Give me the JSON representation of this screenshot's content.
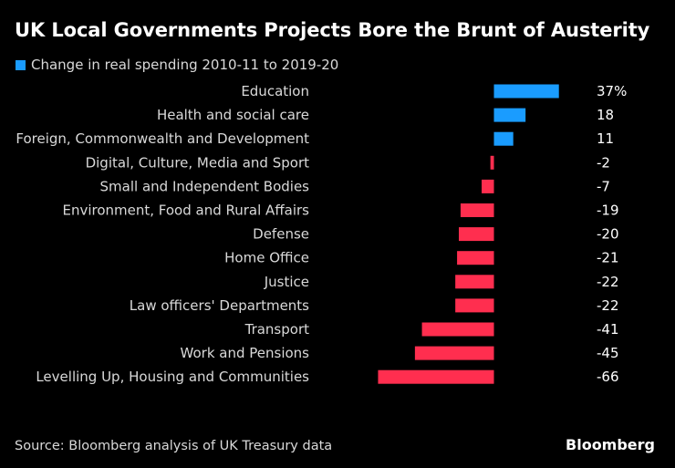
{
  "chart_data": {
    "type": "bar",
    "title": "UK Local Governments Projects Bore the Brunt of Austerity",
    "legend": "Change in real spending 2010-11 to 2019-20",
    "categories": [
      "Education",
      "Health and social care",
      "Foreign, Commonwealth and Development",
      "Digital, Culture, Media and Sport",
      "Small and Independent Bodies",
      "Environment, Food and Rural Affairs",
      "Defense",
      "Home Office",
      "Justice",
      "Law officers' Departments",
      "Transport",
      "Work and Pensions",
      "Levelling Up, Housing and Communities"
    ],
    "values": [
      37,
      18,
      11,
      -2,
      -7,
      -19,
      -20,
      -21,
      -22,
      -22,
      -41,
      -45,
      -66
    ],
    "value_labels": [
      "37%",
      "18",
      "11",
      "-2",
      "-7",
      "-19",
      "-20",
      "-21",
      "-22",
      "-22",
      "-41",
      "-45",
      "-66"
    ],
    "orientation": "horizontal",
    "colors": {
      "positive": "#1a9cff",
      "negative": "#ff2e4f"
    },
    "legend_position": "top-left",
    "grid": false
  },
  "footer": {
    "source": "Source: Bloomberg analysis of UK Treasury data",
    "brand": "Bloomberg"
  }
}
